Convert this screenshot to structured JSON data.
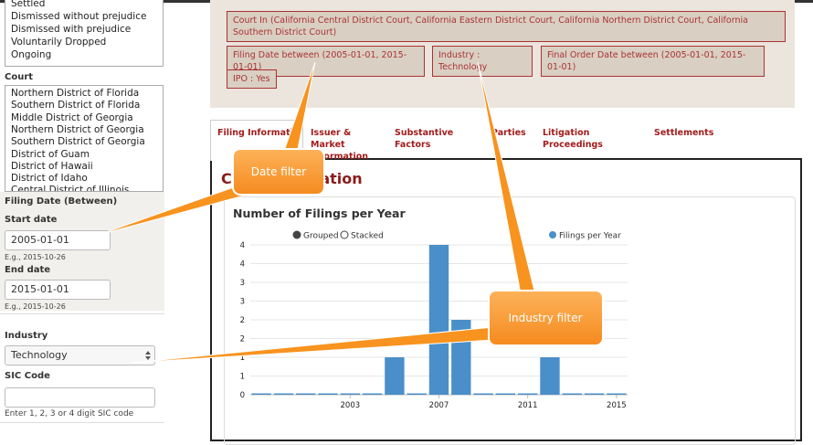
{
  "sidebar": {
    "status_options": [
      "Settled",
      "Dismissed without prejudice",
      "Dismissed with prejudice",
      "Voluntarily Dropped",
      "Ongoing"
    ],
    "court_label": "Court",
    "court_options": [
      "Northern District of Florida",
      "Southern District of Florida",
      "Middle District of Georgia",
      "Northern District of Georgia",
      "Southern District of Georgia",
      "District of Guam",
      "District of Hawaii",
      "District of Idaho",
      "Central District of Illinois"
    ],
    "filing_date_label": "Filing Date (Between)",
    "start_date_label": "Start date",
    "start_date_value": "2005-01-01",
    "start_date_hint": "E.g., 2015-10-26",
    "end_date_label": "End date",
    "end_date_value": "2015-01-01",
    "end_date_hint": "E.g., 2015-10-26",
    "industry_label": "Industry",
    "industry_value": "Technology",
    "sic_label": "SIC Code",
    "sic_hint": "Enter 1, 2, 3 or 4 digit SIC code"
  },
  "filters": [
    "Court In (California Central District Court, California Eastern District Court, California Northern District Court, California Southern District Court)",
    "Filing Date between (2005-01-01, 2015-01-01)",
    "Industry : Technology",
    "Final Order Date between (2005-01-01, 2015-01-01)",
    "IPO : Yes"
  ],
  "tabs": [
    "Filing Information",
    "Issuer & Market Information",
    "Substantive Factors",
    "Parties",
    "Litigation Proceedings",
    "Settlements"
  ],
  "section_title": "Case Information",
  "chart_data": {
    "type": "bar",
    "title": "Number of Filings per Year",
    "modes": [
      "Grouped",
      "Stacked"
    ],
    "x": [
      1999,
      2000,
      2001,
      2002,
      2003,
      2004,
      2005,
      2006,
      2007,
      2008,
      2009,
      2010,
      2011,
      2012,
      2013,
      2014,
      2015
    ],
    "series": [
      {
        "name": "Filings per Year",
        "color": "#4a8fc9",
        "values": [
          0,
          0,
          0,
          0,
          0,
          0,
          1,
          0,
          4,
          2,
          0,
          0,
          0,
          1,
          0,
          0,
          0
        ]
      }
    ],
    "xlim": [
      1998.5,
      2015.5
    ],
    "xticks": [
      2003,
      2007,
      2011,
      2015
    ],
    "ylim": [
      0,
      4
    ],
    "yticks": [
      0,
      {
        "value": 0.5,
        "label": "1"
      },
      1,
      {
        "value": 1.5,
        "label": "2"
      },
      2,
      {
        "value": 2.5,
        "label": "3"
      },
      3,
      {
        "value": 3.5,
        "label": "4"
      },
      4
    ],
    "grid": true
  },
  "callouts": [
    "Date filter",
    "Industry filter"
  ]
}
